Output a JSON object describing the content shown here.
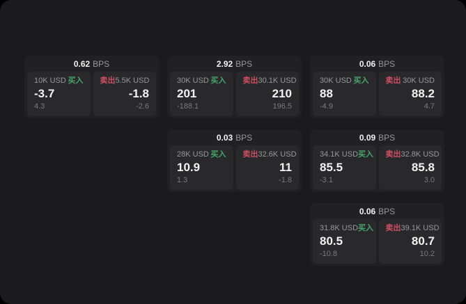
{
  "colors": {
    "page_bg": "#000000",
    "window_bg": "#1b1b1d",
    "card_bg": "#212123",
    "panel_bg": "#29292b",
    "value": "#f2f2f3",
    "label": "#98989d",
    "sub": "#7a7a7e",
    "buy": "#45a56b",
    "sell": "#cd4f63"
  },
  "labels": {
    "bps": "BPS",
    "buy": "买入",
    "sell": "卖出"
  },
  "cards": [
    {
      "row": 1,
      "col": 1,
      "bps": "0.62",
      "buy": {
        "amount": "10K USD",
        "value": "-3.7",
        "sub": "4.3"
      },
      "sell": {
        "amount": "5.5K USD",
        "value": "-1.8",
        "sub": "-2.6"
      }
    },
    {
      "row": 1,
      "col": 2,
      "bps": "2.92",
      "buy": {
        "amount": "30K USD",
        "value": "201",
        "sub": "-188.1"
      },
      "sell": {
        "amount": "30.1K USD",
        "value": "210",
        "sub": "196.5"
      }
    },
    {
      "row": 1,
      "col": 3,
      "bps": "0.06",
      "buy": {
        "amount": "30K USD",
        "value": "88",
        "sub": "-4.9"
      },
      "sell": {
        "amount": "30K USD",
        "value": "88.2",
        "sub": "4.7"
      }
    },
    {
      "row": 2,
      "col": 2,
      "bps": "0.03",
      "buy": {
        "amount": "28K USD",
        "value": "10.9",
        "sub": "1.3"
      },
      "sell": {
        "amount": "32.6K USD",
        "value": "11",
        "sub": "-1.8"
      }
    },
    {
      "row": 2,
      "col": 3,
      "bps": "0.09",
      "buy": {
        "amount": "34.1K USD",
        "value": "85.5",
        "sub": "-3.1"
      },
      "sell": {
        "amount": "32.8K USD",
        "value": "85.8",
        "sub": "3.0"
      }
    },
    {
      "row": 3,
      "col": 3,
      "bps": "0.06",
      "buy": {
        "amount": "31.8K USD",
        "value": "80.5",
        "sub": "-10.8"
      },
      "sell": {
        "amount": "39.1K USD",
        "value": "80.7",
        "sub": "10.2"
      }
    }
  ]
}
